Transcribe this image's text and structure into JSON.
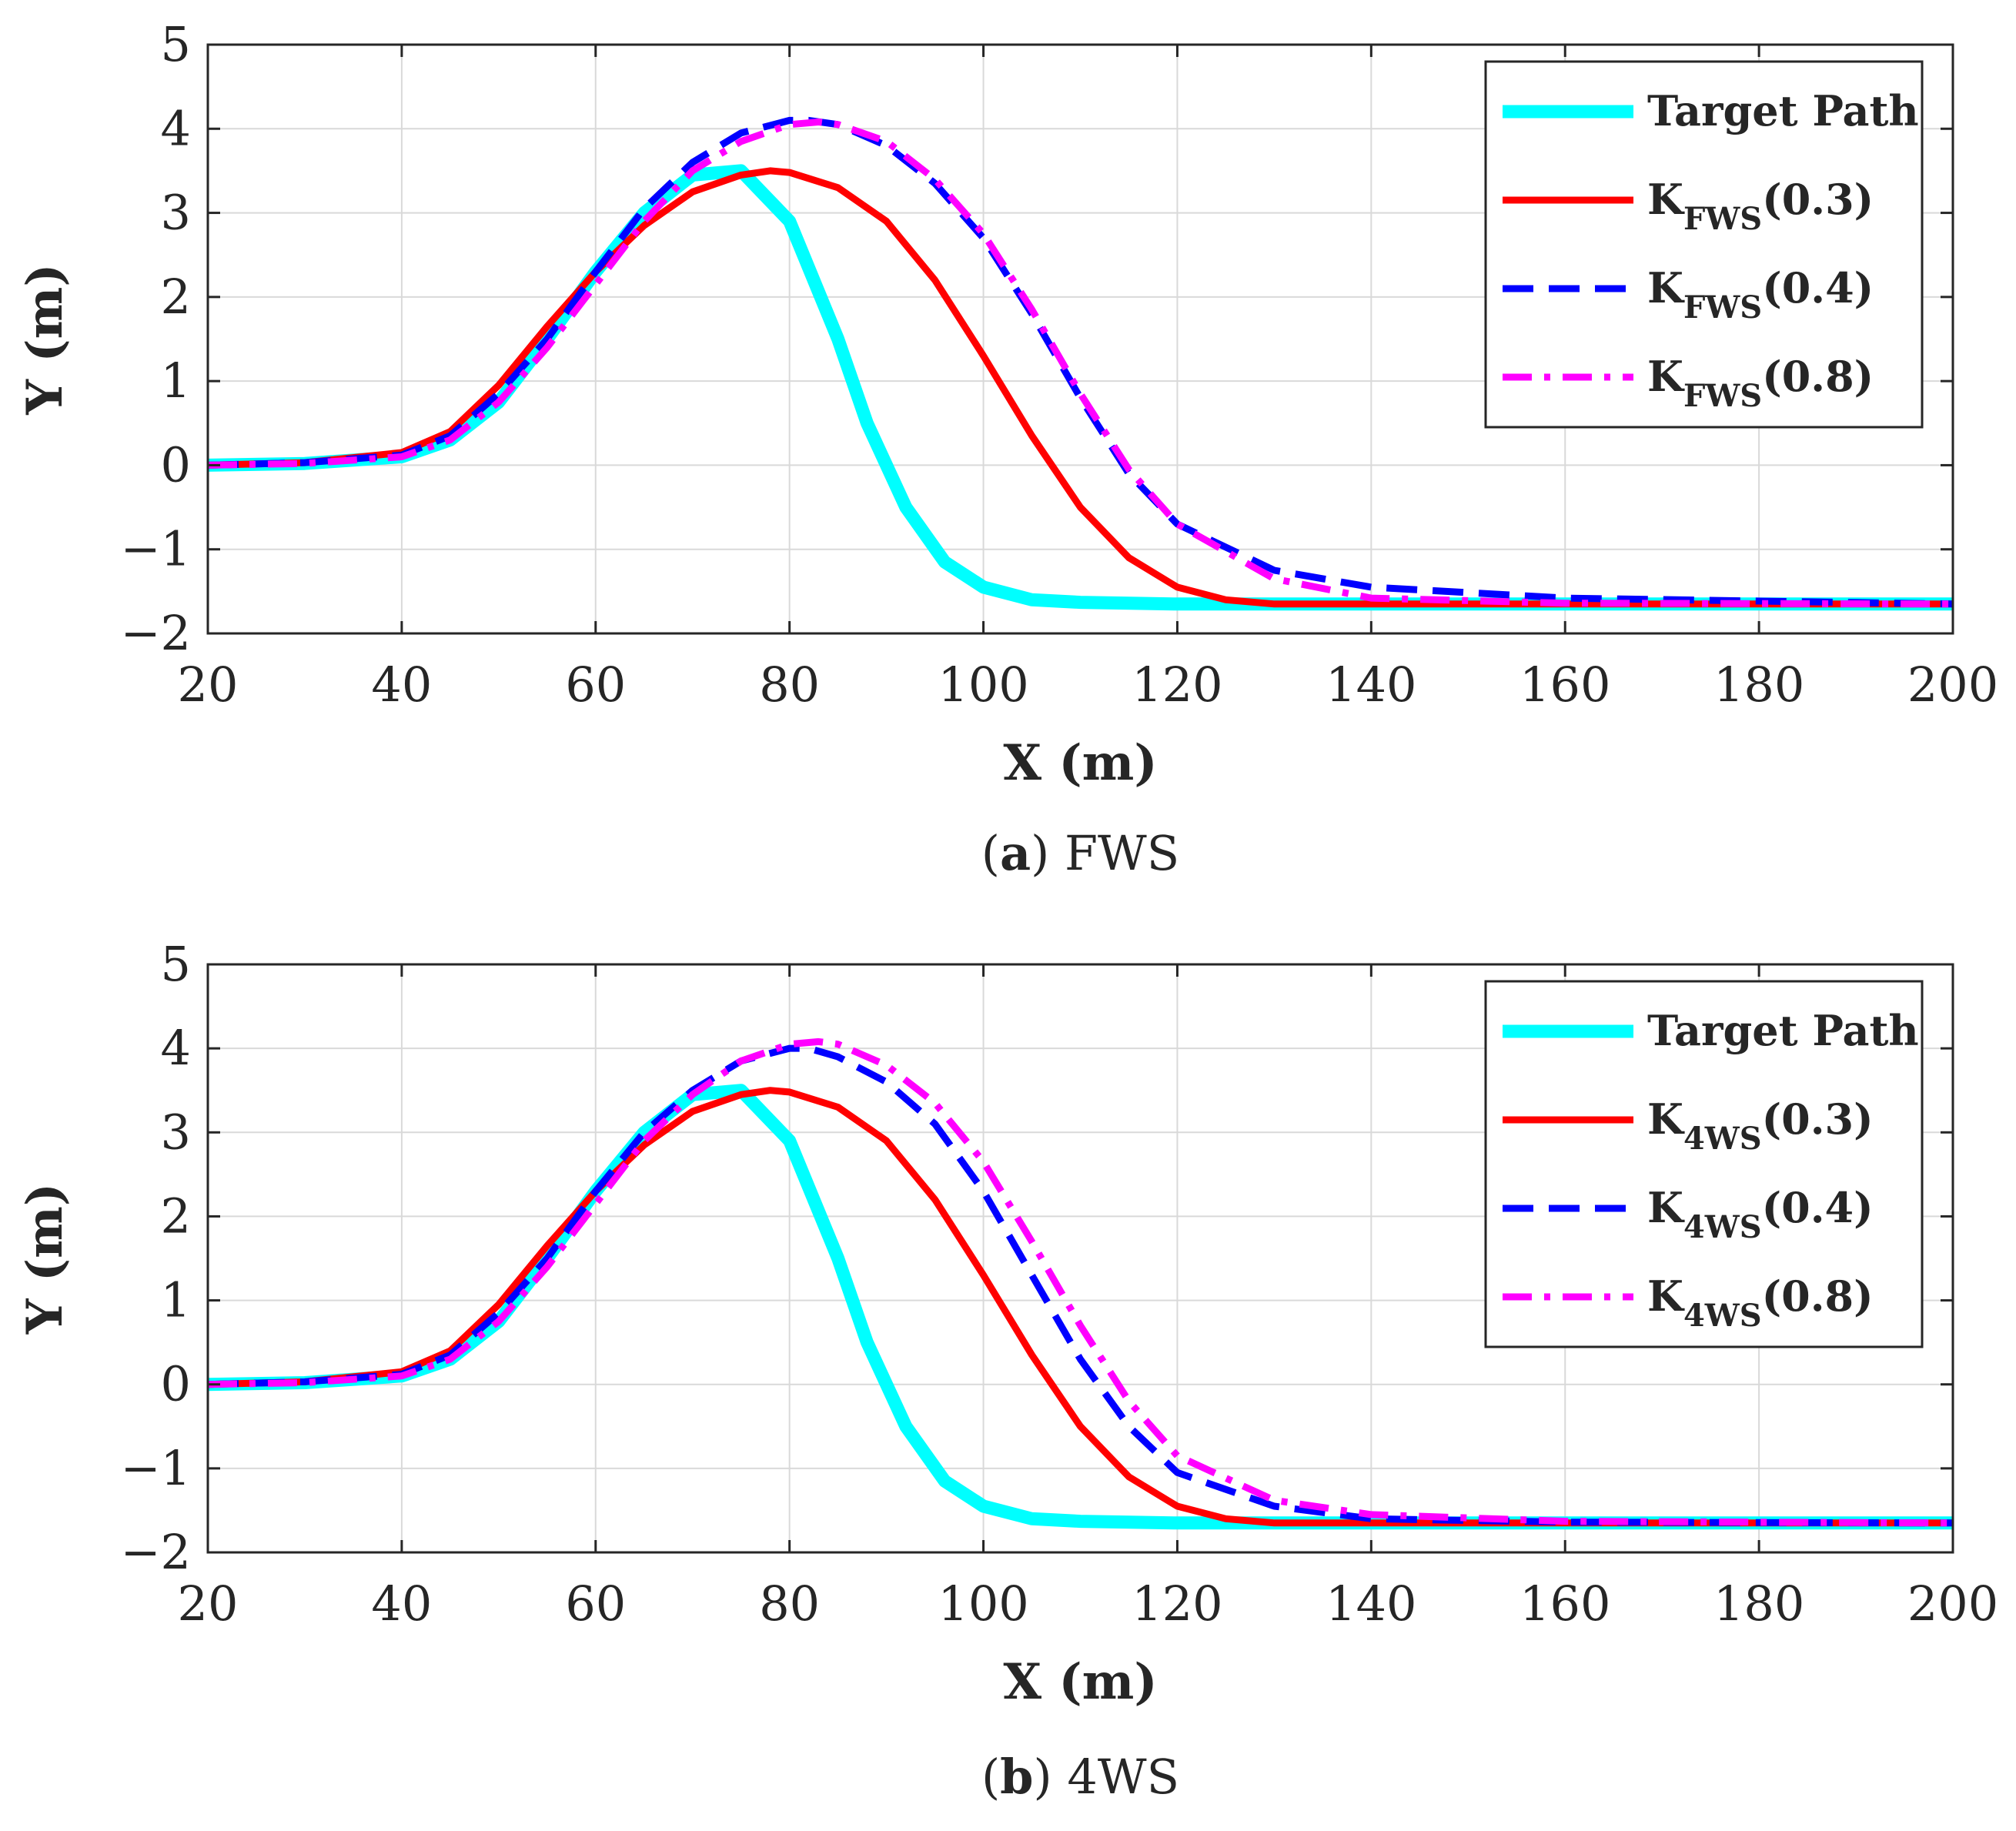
{
  "chart_data": [
    {
      "type": "line",
      "caption_letter": "a",
      "caption_text": " FWS",
      "xlabel": "X (m)",
      "ylabel": "Y (m)",
      "xlim": [
        20,
        200
      ],
      "ylim": [
        -2,
        5
      ],
      "xticks": [
        20,
        40,
        60,
        80,
        100,
        120,
        140,
        160,
        180,
        200
      ],
      "yticks": [
        -2,
        -1,
        0,
        1,
        2,
        3,
        4,
        5
      ],
      "ytick_labels": [
        "−2",
        "−1",
        "0",
        "1",
        "2",
        "3",
        "4",
        "5"
      ],
      "grid": true,
      "legend_position": "top-right",
      "series": [
        {
          "name": "Target Path",
          "label_main": "Target Path",
          "label_sub": "",
          "label_tail": "",
          "color": "#00FFFF",
          "style": "solid",
          "x": [
            20,
            30,
            40,
            45,
            50,
            55,
            60,
            65,
            70,
            75,
            80,
            85,
            88,
            92,
            96,
            100,
            105,
            110,
            120,
            140,
            200
          ],
          "y": [
            0,
            0.02,
            0.1,
            0.3,
            0.75,
            1.5,
            2.3,
            3.0,
            3.45,
            3.5,
            2.9,
            1.5,
            0.5,
            -0.5,
            -1.15,
            -1.45,
            -1.6,
            -1.63,
            -1.65,
            -1.65,
            -1.65
          ]
        },
        {
          "name": "K_FWS(0.3)",
          "label_main": "K",
          "label_sub": "FWS",
          "label_tail": "(0.3)",
          "color": "#FF0000",
          "style": "solid",
          "x": [
            20,
            30,
            40,
            45,
            50,
            55,
            60,
            65,
            70,
            75,
            78,
            80,
            85,
            90,
            95,
            100,
            105,
            110,
            115,
            120,
            125,
            130,
            140,
            200
          ],
          "y": [
            0,
            0.03,
            0.15,
            0.4,
            0.95,
            1.65,
            2.3,
            2.85,
            3.25,
            3.45,
            3.5,
            3.48,
            3.3,
            2.9,
            2.2,
            1.3,
            0.35,
            -0.5,
            -1.1,
            -1.45,
            -1.6,
            -1.65,
            -1.65,
            -1.65
          ]
        },
        {
          "name": "K_FWS(0.4)",
          "label_main": "K",
          "label_sub": "FWS",
          "label_tail": "(0.4)",
          "color": "#0000FF",
          "style": "dashed",
          "x": [
            20,
            30,
            40,
            45,
            50,
            55,
            60,
            65,
            70,
            75,
            80,
            82,
            85,
            90,
            95,
            100,
            105,
            110,
            115,
            120,
            130,
            140,
            160,
            200
          ],
          "y": [
            0,
            0.03,
            0.12,
            0.35,
            0.85,
            1.5,
            2.3,
            3.05,
            3.6,
            3.95,
            4.1,
            4.1,
            4.05,
            3.8,
            3.35,
            2.7,
            1.8,
            0.8,
            -0.1,
            -0.7,
            -1.25,
            -1.45,
            -1.58,
            -1.65
          ]
        },
        {
          "name": "K_FWS(0.8)",
          "label_main": "K",
          "label_sub": "FWS",
          "label_tail": "(0.8)",
          "color": "#FF00FF",
          "style": "dashdot",
          "x": [
            20,
            30,
            40,
            45,
            50,
            55,
            60,
            65,
            70,
            75,
            80,
            83,
            85,
            90,
            95,
            100,
            105,
            110,
            115,
            120,
            130,
            140,
            160,
            200
          ],
          "y": [
            0,
            0.02,
            0.1,
            0.3,
            0.75,
            1.4,
            2.15,
            2.9,
            3.5,
            3.85,
            4.05,
            4.08,
            4.05,
            3.85,
            3.4,
            2.75,
            1.85,
            0.85,
            -0.05,
            -0.7,
            -1.35,
            -1.58,
            -1.64,
            -1.65
          ]
        }
      ]
    },
    {
      "type": "line",
      "caption_letter": "b",
      "caption_text": " 4WS",
      "xlabel": "X (m)",
      "ylabel": "Y (m)",
      "xlim": [
        20,
        200
      ],
      "ylim": [
        -2,
        5
      ],
      "xticks": [
        20,
        40,
        60,
        80,
        100,
        120,
        140,
        160,
        180,
        200
      ],
      "yticks": [
        -2,
        -1,
        0,
        1,
        2,
        3,
        4,
        5
      ],
      "ytick_labels": [
        "−2",
        "−1",
        "0",
        "1",
        "2",
        "3",
        "4",
        "5"
      ],
      "grid": true,
      "legend_position": "top-right",
      "series": [
        {
          "name": "Target Path",
          "label_main": "Target Path",
          "label_sub": "",
          "label_tail": "",
          "color": "#00FFFF",
          "style": "solid",
          "x": [
            20,
            30,
            40,
            45,
            50,
            55,
            60,
            65,
            70,
            75,
            80,
            85,
            88,
            92,
            96,
            100,
            105,
            110,
            120,
            140,
            200
          ],
          "y": [
            0,
            0.02,
            0.1,
            0.3,
            0.75,
            1.5,
            2.3,
            3.0,
            3.45,
            3.5,
            2.9,
            1.5,
            0.5,
            -0.5,
            -1.15,
            -1.45,
            -1.6,
            -1.63,
            -1.65,
            -1.65,
            -1.65
          ]
        },
        {
          "name": "K_4WS(0.3)",
          "label_main": "K",
          "label_sub": "4WS",
          "label_tail": "(0.3)",
          "color": "#FF0000",
          "style": "solid",
          "x": [
            20,
            30,
            40,
            45,
            50,
            55,
            60,
            65,
            70,
            75,
            78,
            80,
            85,
            90,
            95,
            100,
            105,
            110,
            115,
            120,
            125,
            130,
            140,
            200
          ],
          "y": [
            0,
            0.03,
            0.15,
            0.4,
            0.95,
            1.65,
            2.3,
            2.85,
            3.25,
            3.45,
            3.5,
            3.48,
            3.3,
            2.9,
            2.2,
            1.3,
            0.35,
            -0.5,
            -1.1,
            -1.45,
            -1.6,
            -1.65,
            -1.65,
            -1.65
          ]
        },
        {
          "name": "K_4WS(0.4)",
          "label_main": "K",
          "label_sub": "4WS",
          "label_tail": "(0.4)",
          "color": "#0000FF",
          "style": "dashed",
          "x": [
            20,
            30,
            40,
            45,
            50,
            55,
            60,
            65,
            70,
            75,
            80,
            82,
            85,
            90,
            95,
            100,
            105,
            110,
            115,
            120,
            130,
            140,
            160,
            200
          ],
          "y": [
            0,
            0.03,
            0.12,
            0.35,
            0.85,
            1.5,
            2.3,
            3.0,
            3.5,
            3.85,
            4.0,
            4.0,
            3.9,
            3.6,
            3.1,
            2.3,
            1.3,
            0.3,
            -0.5,
            -1.05,
            -1.45,
            -1.6,
            -1.64,
            -1.65
          ]
        },
        {
          "name": "K_4WS(0.8)",
          "label_main": "K",
          "label_sub": "4WS",
          "label_tail": "(0.8)",
          "color": "#FF00FF",
          "style": "dashdot",
          "x": [
            20,
            30,
            40,
            45,
            50,
            55,
            60,
            65,
            70,
            75,
            80,
            83,
            85,
            90,
            95,
            100,
            105,
            110,
            115,
            120,
            130,
            140,
            160,
            200
          ],
          "y": [
            0,
            0.02,
            0.1,
            0.3,
            0.75,
            1.4,
            2.15,
            2.9,
            3.45,
            3.85,
            4.05,
            4.08,
            4.05,
            3.8,
            3.35,
            2.65,
            1.7,
            0.7,
            -0.2,
            -0.85,
            -1.38,
            -1.55,
            -1.63,
            -1.65
          ]
        }
      ]
    }
  ]
}
